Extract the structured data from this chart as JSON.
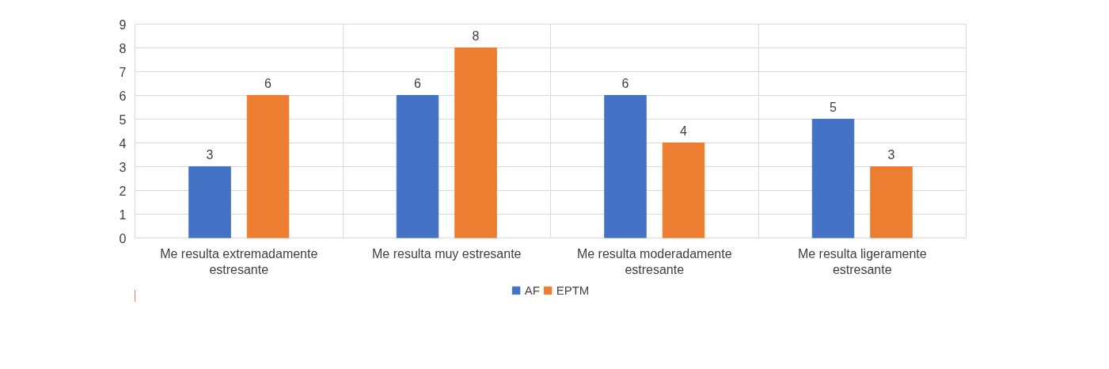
{
  "chart_data": {
    "type": "bar",
    "categories": [
      "Me resulta extremadamente estresante",
      "Me resulta muy estresante",
      "Me resulta moderadamente estresante",
      "Me resulta ligeramente estresante"
    ],
    "series": [
      {
        "name": "AF",
        "color": "#4472c4",
        "values": [
          3,
          6,
          6,
          5
        ]
      },
      {
        "name": "EPTM",
        "color": "#ed7d31",
        "values": [
          6,
          8,
          4,
          3
        ]
      }
    ],
    "ylim": [
      0,
      9
    ],
    "yticks": [
      0,
      1,
      2,
      3,
      4,
      5,
      6,
      7,
      8,
      9
    ],
    "grid": true,
    "legend": "bottom",
    "data_labels": true
  }
}
